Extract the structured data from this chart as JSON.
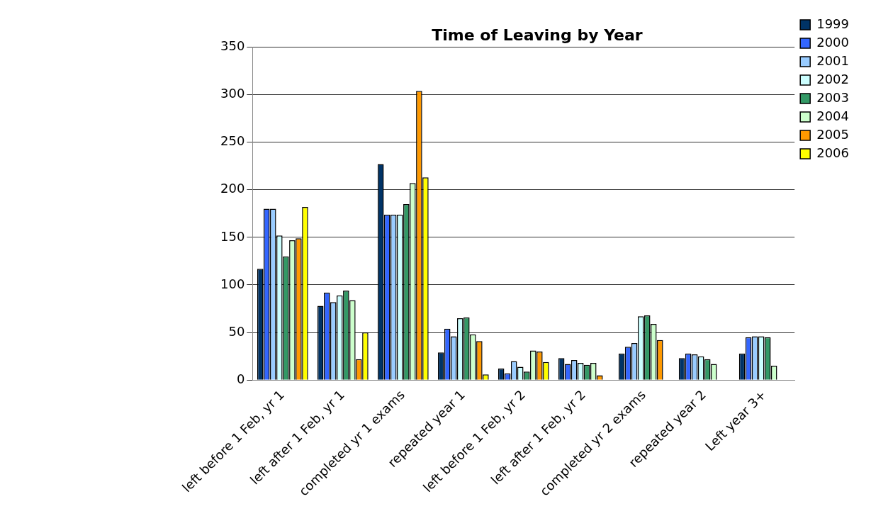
{
  "chart_data": {
    "type": "bar",
    "title": "Time of Leaving by Year",
    "categories": [
      "left before 1 Feb, yr 1",
      "left after 1 Feb, yr 1",
      "completed yr 1 exams",
      "repeated year 1",
      "left before 1 Feb, yr 2",
      "left after 1 Feb, yr 2",
      "completed yr 2 exams",
      "repeated year 2",
      "Left year 3+"
    ],
    "series": [
      {
        "name": "1999",
        "color": "#003366",
        "values": [
          117,
          78,
          227,
          29,
          12,
          23,
          28,
          23,
          28
        ]
      },
      {
        "name": "2000",
        "color": "#3366ff",
        "values": [
          180,
          92,
          174,
          54,
          7,
          17,
          35,
          28,
          45
        ]
      },
      {
        "name": "2001",
        "color": "#99ccff",
        "values": [
          180,
          82,
          174,
          46,
          20,
          21,
          39,
          27,
          46
        ]
      },
      {
        "name": "2002",
        "color": "#ccffff",
        "values": [
          152,
          89,
          174,
          65,
          14,
          18,
          67,
          25,
          46
        ]
      },
      {
        "name": "2003",
        "color": "#339966",
        "values": [
          130,
          94,
          185,
          66,
          9,
          16,
          68,
          22,
          45
        ]
      },
      {
        "name": "2004",
        "color": "#ccffcc",
        "values": [
          147,
          84,
          207,
          48,
          31,
          18,
          59,
          17,
          15
        ]
      },
      {
        "name": "2005",
        "color": "#ff9900",
        "values": [
          149,
          22,
          304,
          41,
          30,
          5,
          42,
          0,
          0
        ]
      },
      {
        "name": "2006",
        "color": "#ffff00",
        "values": [
          182,
          50,
          213,
          6,
          19,
          0,
          0,
          0,
          0
        ]
      }
    ],
    "ylim": [
      0,
      350
    ],
    "yticks": [
      0,
      50,
      100,
      150,
      200,
      250,
      300,
      350
    ],
    "grid": "y",
    "legend": "top right"
  }
}
